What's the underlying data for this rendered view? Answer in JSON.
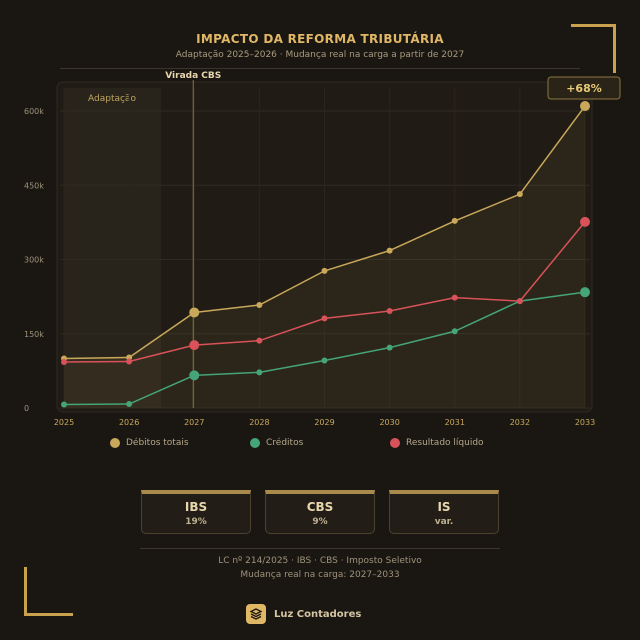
{
  "header": {
    "title": "IMPACTO DA REFORMA TRIBUTÁRIA",
    "subtitle": "Adaptação 2025–2026 · Mudança real na carga a partir de 2027"
  },
  "chart_data": {
    "type": "line",
    "x": [
      "2025",
      "2026",
      "2027",
      "2028",
      "2029",
      "2030",
      "2031",
      "2032",
      "2033"
    ],
    "y_ticks": [
      "0",
      "150k",
      "300k",
      "450k",
      "600k"
    ],
    "ylim": [
      0,
      600000
    ],
    "grid": true,
    "legend_position": "bottom",
    "series": [
      {
        "name": "Débitos totais",
        "color": "#c9a85a",
        "values": [
          100000,
          102000,
          193000,
          208000,
          277000,
          318000,
          378000,
          432000,
          610000
        ]
      },
      {
        "name": "Créditos",
        "color": "#45a478",
        "values": [
          7000,
          8000,
          66000,
          72000,
          96000,
          122000,
          155000,
          216000,
          234000
        ]
      },
      {
        "name": "Resultado líquido",
        "color": "#d9525a",
        "values": [
          93000,
          94000,
          127000,
          136000,
          181000,
          196000,
          223000,
          216000,
          376000
        ]
      }
    ],
    "highlight_points": {
      "Débitos totais": [
        2,
        8
      ],
      "Resultado líquido": [
        2,
        8
      ],
      "Créditos": [
        2,
        8
      ]
    },
    "annotations": {
      "phase_label": "Adaptação",
      "phase_range": [
        "2025",
        "2026"
      ],
      "marker_label": "Virada CBS",
      "marker_x": "2027",
      "badge": "+68%"
    }
  },
  "taxes": [
    {
      "name": "IBS",
      "rate": "19%"
    },
    {
      "name": "CBS",
      "rate": "9%"
    },
    {
      "name": "IS",
      "rate": "var."
    }
  ],
  "footer": {
    "line1": "LC nº 214/2025  ·  IBS  ·  CBS  ·  Imposto Seletivo",
    "line2": "Mudança real na carga: 2027–2033"
  },
  "brand": {
    "name": "Luz Contadores",
    "icon": "stack-icon"
  }
}
